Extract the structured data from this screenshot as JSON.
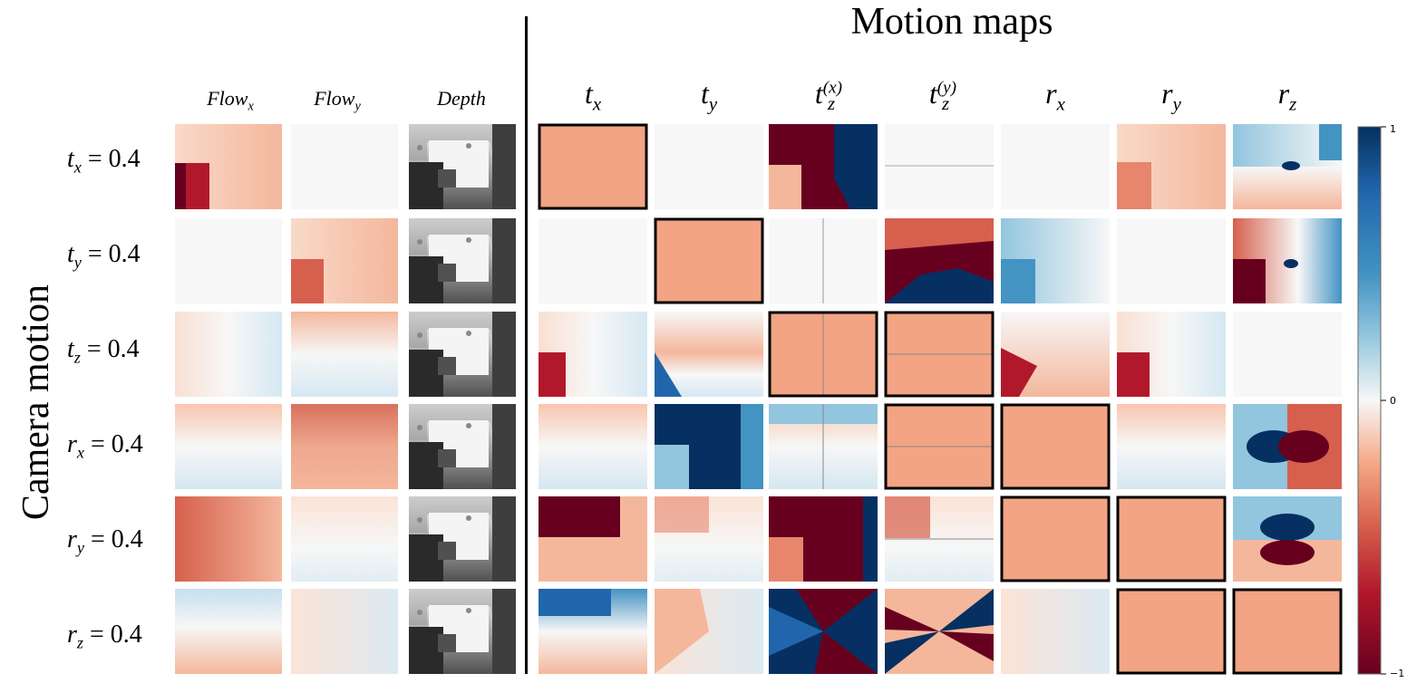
{
  "title": "Motion maps",
  "ylabel": "Camera motion",
  "col_labels": {
    "flow_x": {
      "base": "Flow",
      "sub": "x"
    },
    "flow_y": {
      "base": "Flow",
      "sub": "y"
    },
    "depth": {
      "base": "Depth"
    },
    "tx": {
      "base": "t",
      "sub": "x"
    },
    "ty": {
      "base": "t",
      "sub": "y"
    },
    "tzx": {
      "base": "t",
      "sub": "z",
      "sup": "(x)"
    },
    "tzy": {
      "base": "t",
      "sub": "z",
      "sup": "(y)"
    },
    "rx": {
      "base": "r",
      "sub": "x"
    },
    "ry": {
      "base": "r",
      "sub": "y"
    },
    "rz": {
      "base": "r",
      "sub": "z"
    }
  },
  "rows": [
    {
      "var": "t",
      "sub": "x",
      "value": "= 0.4"
    },
    {
      "var": "t",
      "sub": "y",
      "value": "= 0.4"
    },
    {
      "var": "t",
      "sub": "z",
      "value": "= 0.4"
    },
    {
      "var": "r",
      "sub": "x",
      "value": "= 0.4"
    },
    {
      "var": "r",
      "sub": "y",
      "value": "= 0.4"
    },
    {
      "var": "r",
      "sub": "z",
      "value": "= 0.4"
    }
  ],
  "colorbar": {
    "max_label": "1",
    "mid_label": "0",
    "min_label": "−1"
  },
  "colors": {
    "dark_red": "#67001f",
    "red": "#d6604d",
    "salmon": "#f4a582",
    "light": "#f7f7f7",
    "light_blue": "#92c5de",
    "blue": "#4393c3",
    "dark_blue": "#053061"
  }
}
